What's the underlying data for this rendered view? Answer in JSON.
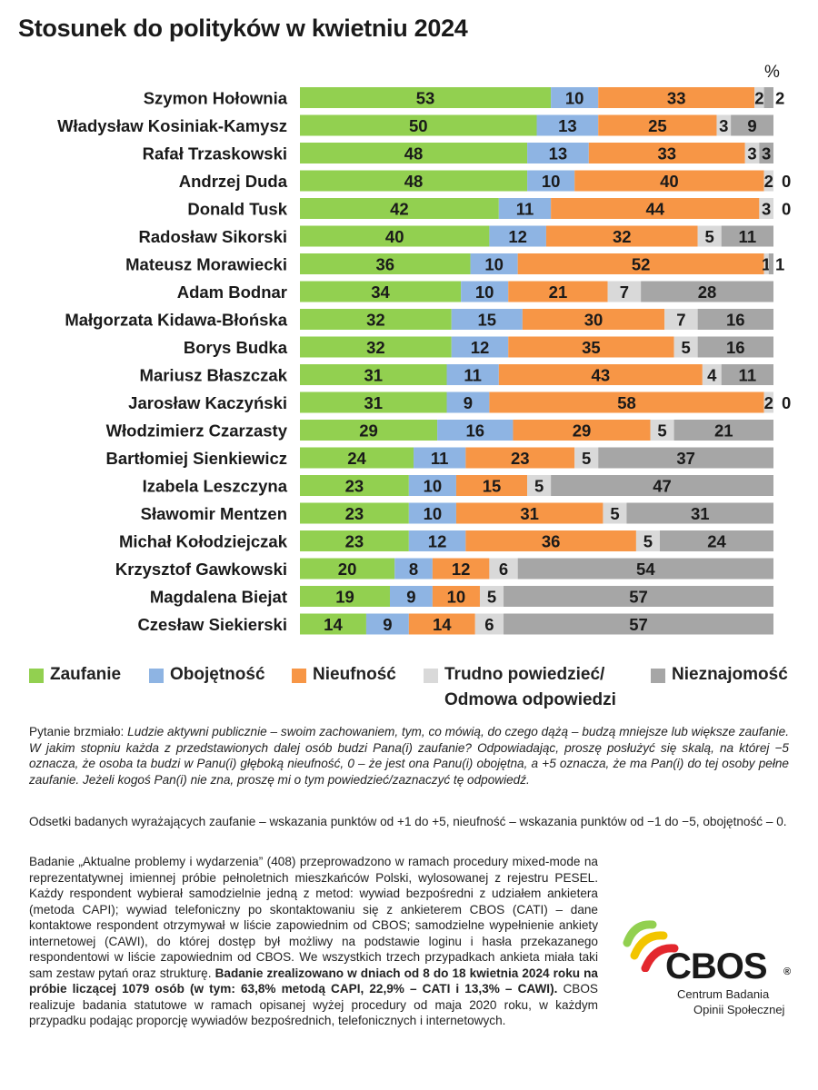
{
  "title": "Stosunek do polityków w kwietniu 2024",
  "unit_label": "%",
  "colors": {
    "zaufanie": "#92d050",
    "obojetnosc": "#8eb4e3",
    "nieufnosc": "#f79646",
    "trudno": "#d9d9d9",
    "nieznajomosc": "#a6a6a6"
  },
  "legend": [
    {
      "key": "zaufanie",
      "label": "Zaufanie"
    },
    {
      "key": "obojetnosc",
      "label": "Obojętność"
    },
    {
      "key": "nieufnosc",
      "label": "Nieufność"
    },
    {
      "key": "trudno",
      "label": "Trudno powiedzieć/",
      "label2": "Odmowa odpowiedzi"
    },
    {
      "key": "nieznajomosc",
      "label": "Nieznajomość"
    }
  ],
  "chart_data": {
    "type": "bar",
    "orientation": "horizontal",
    "stacked": true,
    "title": "Stosunek do polityków w kwietniu 2024",
    "unit": "%",
    "series_names": [
      "Zaufanie",
      "Obojętność",
      "Nieufność",
      "Trudno powiedzieć/ Odmowa odpowiedzi",
      "Nieznajomość"
    ],
    "categories": [
      "Szymon Hołownia",
      "Władysław Kosiniak-Kamysz",
      "Rafał Trzaskowski",
      "Andrzej Duda",
      "Donald Tusk",
      "Radosław Sikorski",
      "Mateusz Morawiecki",
      "Adam Bodnar",
      "Małgorzata Kidawa-Błońska",
      "Borys Budka",
      "Mariusz Błaszczak",
      "Jarosław Kaczyński",
      "Włodzimierz Czarzasty",
      "Bartłomiej Sienkiewicz",
      "Izabela Leszczyna",
      "Sławomir Mentzen",
      "Michał Kołodziejczak",
      "Krzysztof Gawkowski",
      "Magdalena Biejat",
      "Czesław Siekierski"
    ],
    "values": [
      [
        53,
        10,
        33,
        2,
        2
      ],
      [
        50,
        13,
        25,
        3,
        9
      ],
      [
        48,
        13,
        33,
        3,
        3
      ],
      [
        48,
        10,
        40,
        2,
        0
      ],
      [
        42,
        11,
        44,
        3,
        0
      ],
      [
        40,
        12,
        32,
        5,
        11
      ],
      [
        36,
        10,
        52,
        1,
        1
      ],
      [
        34,
        10,
        21,
        7,
        28
      ],
      [
        32,
        15,
        30,
        7,
        16
      ],
      [
        32,
        12,
        35,
        5,
        16
      ],
      [
        31,
        11,
        43,
        4,
        11
      ],
      [
        31,
        9,
        58,
        2,
        0
      ],
      [
        29,
        16,
        29,
        5,
        21
      ],
      [
        24,
        11,
        23,
        5,
        37
      ],
      [
        23,
        10,
        15,
        5,
        47
      ],
      [
        23,
        10,
        31,
        5,
        31
      ],
      [
        23,
        12,
        36,
        5,
        24
      ],
      [
        20,
        8,
        12,
        6,
        54
      ],
      [
        19,
        9,
        10,
        5,
        57
      ],
      [
        14,
        9,
        14,
        6,
        57
      ]
    ]
  },
  "notes": {
    "question_prefix": "Pytanie brzmiało: ",
    "question_text": "Ludzie aktywni publicznie – swoim zachowaniem, tym, co mówią, do czego dążą – budzą mniejsze lub większe zaufanie. W jakim stopniu każda z przedstawionych dalej osób budzi Pana(i) zaufanie? Odpowiadając, proszę posłużyć się skalą, na której −5 oznacza, że osoba ta budzi w Panu(i) głęboką nieufność, 0 – że jest ona Panu(i) obojętna, a +5 oznacza, że ma Pan(i) do tej osoby pełne zaufanie. Jeżeli kogoś Pan(i) nie zna, proszę mi o tym powiedzieć/zaznaczyć tę odpowiedź.",
    "definition": "Odsetki badanych wyrażających zaufanie – wskazania punktów od +1 do +5, nieufność – wskazania punktów od −1 do −5, obojętność – 0.",
    "method_part1": "Badanie „Aktualne problemy i wydarzenia” (408) przeprowadzono w ramach procedury mixed-mode na reprezentatywnej imiennej próbie pełnoletnich mieszkańców Polski, wylosowanej z rejestru PESEL. Każdy respondent wybierał samodzielnie jedną z metod: wywiad bezpośredni z udziałem ankietera (metoda CAPI); wywiad telefoniczny po skontaktowaniu się z ankieterem CBOS (CATI) – dane kontaktowe respondent otrzymywał w liście zapowiednim od CBOS; samodzielne wypełnienie ankiety internetowej (CAWI), do której dostęp był możliwy na podstawie loginu i hasła przekazanego respondentowi w liście zapowiednim od CBOS. We wszystkich trzech przypadkach ankieta miała taki sam zestaw pytań oraz strukturę. ",
    "method_bold": "Badanie zrealizowano w dniach od 8 do 18 kwietnia 2024 roku na próbie liczącej 1079 osób (w tym: 63,8% metodą CAPI, 22,9% – CATI i 13,3% – CAWI).",
    "method_part2": " CBOS realizuje badania statutowe w ramach opisanej wyżej procedury od maja 2020 roku, w każdym przypadku podając proporcję wywiadów bezpośrednich, telefonicznych i internetowych."
  },
  "logo": {
    "name": "CBOS",
    "reg": "®",
    "sub1": "Centrum Badania",
    "sub2": "Opinii Społecznej"
  }
}
